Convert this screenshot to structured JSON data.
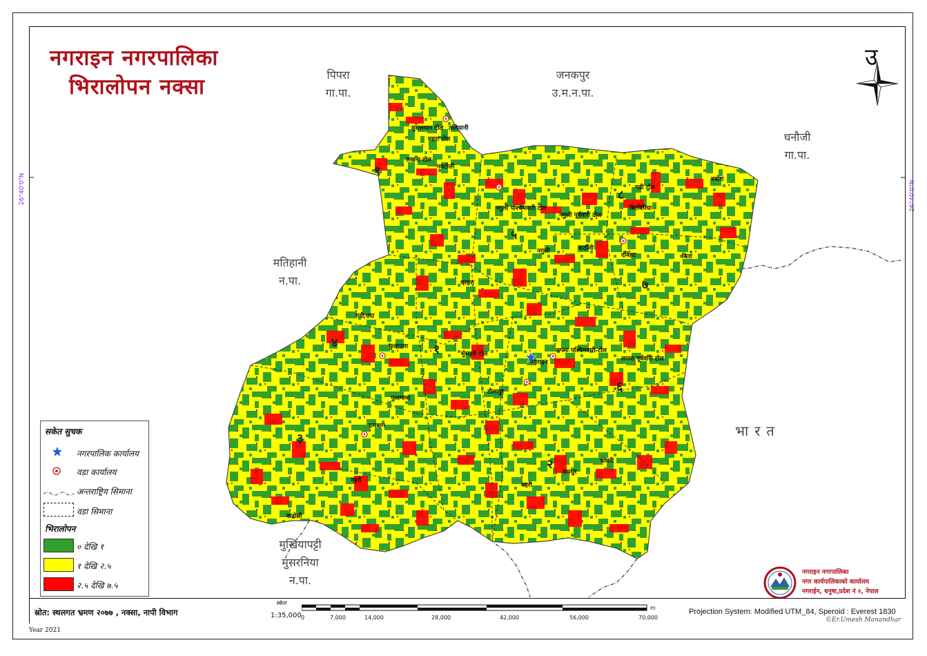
{
  "title": {
    "line1": "नगराइन नगरपालिका",
    "line2": "भिरालोपन नक्सा"
  },
  "north_label": "उ",
  "neighbors": [
    {
      "id": "pipara",
      "line1": "पिपरा",
      "line2": "गा.पा."
    },
    {
      "id": "janakpur",
      "line1": "जनकपुर",
      "line2": "उ.म.न.पा."
    },
    {
      "id": "dhanauji",
      "line1": "धनौजी",
      "line2": "गा.पा."
    },
    {
      "id": "matihani",
      "line1": "मतिहानी",
      "line2": "न.पा."
    },
    {
      "id": "mukhiyapatti",
      "line1": "मुखियापट्टी",
      "line2": "मुसरनिया",
      "line3": "न.पा."
    }
  ],
  "country_label": "भारत",
  "coordinates": {
    "left": "26°40'0\"N",
    "right": "26°40'0\"N"
  },
  "ward_numbers": [
    "१",
    "२",
    "३",
    "४",
    "५",
    "६",
    "७",
    "८",
    "९"
  ],
  "places": [
    "मुसलमान टोल",
    "तलियानी",
    "महरा टोल",
    "लखना टोल",
    "नवटोली",
    "गढी टोल",
    "त्रबोरा",
    "नगुली पश्चिमवारी टोल",
    "नगुली पूर्ववारी टोल",
    "बिरबिरिया",
    "नगुली",
    "कठौनी",
    "दविहट",
    "बिता",
    "धरहरा",
    "गदी उदा",
    "फुलगामा",
    "मुसहरी टोल",
    "नगराइन",
    "लगमा पश्चिमवारी टोल",
    "लगमा पूर्ववारी टोल",
    "टौलापुर",
    "फुलगामा",
    "रामबाग",
    "घोघरी",
    "रामधुर",
    "नहरी",
    "बहरी",
    "वाटोली"
  ],
  "legend": {
    "heading": "सकेत सुचक",
    "items": [
      {
        "icon": "star-icon",
        "label": "नगरपालिक कार्यालय"
      },
      {
        "icon": "ward-office-icon",
        "label": "वडा कार्यालय"
      },
      {
        "icon": "international-boundary-icon",
        "label": "अन्तराष्ट्रिय सिमाना"
      },
      {
        "icon": "ward-boundary-icon",
        "label": "वडा सिमाना"
      }
    ],
    "slope_heading": "भिरालोपन",
    "slope_classes": [
      {
        "label": "० देखि १",
        "color": "#33a02c"
      },
      {
        "label": "१ देखि २.५",
        "color": "#ffff00"
      },
      {
        "label": "२.५ देखि ७.५",
        "color": "#ff0000"
      }
    ]
  },
  "footer": {
    "source": "स्रोत: स्थलगत भ्रमण २०७७ , नक्सा, नापी विभाग",
    "scale_label": "स्केल",
    "scale_ratio": "1:35,000",
    "scale_ticks": [
      "0",
      "7,000",
      "14,000",
      "28,000",
      "42,000",
      "56,000",
      "70,000"
    ],
    "scale_unit": "m",
    "projection": "Projection System: Modified UTM_84, Speroid : Everest 1830",
    "credit": "©Er.Umesh Manandhar",
    "year": "Year 2021"
  },
  "municipality_block": {
    "line1": "नगराइन नगरपालिका",
    "line2": "नगर कार्यपालिकाको कार्यालय",
    "line3": "नगराईन, धनुषा,प्रदेश नं २, नेपाल"
  },
  "colors": {
    "title": "#b0121b",
    "green": "#33a02c",
    "yellow": "#ffff00",
    "red": "#ff0000"
  }
}
